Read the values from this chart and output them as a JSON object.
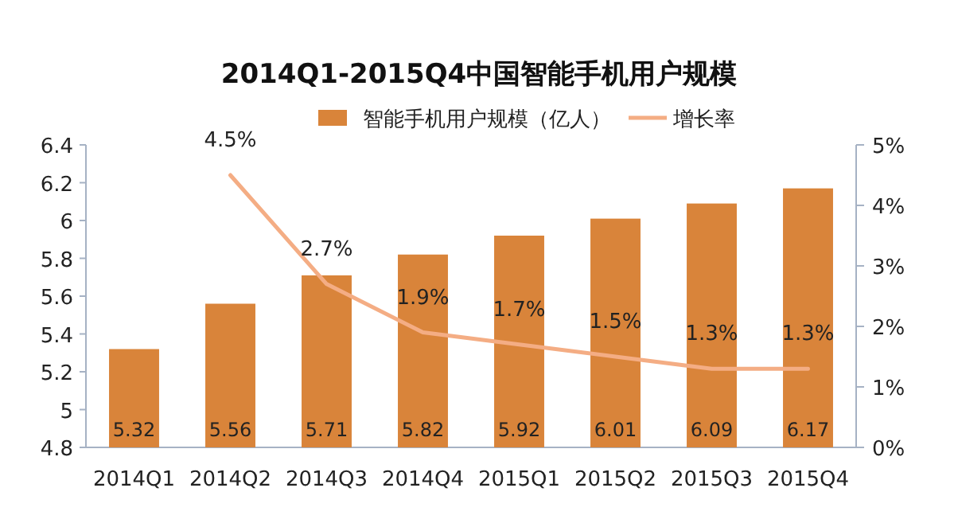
{
  "chart_data": {
    "type": "bar",
    "title": "2014Q1-2015Q4中国智能手机用户规模",
    "categories": [
      "2014Q1",
      "2014Q2",
      "2014Q3",
      "2014Q4",
      "2015Q1",
      "2015Q2",
      "2015Q3",
      "2015Q4"
    ],
    "series": [
      {
        "name": "智能手机用户规模（亿人）",
        "color": "#d9843a",
        "values": [
          5.32,
          5.56,
          5.71,
          5.82,
          5.92,
          6.01,
          6.09,
          6.17
        ],
        "value_labels": [
          "5.32",
          "5.56",
          "5.71",
          "5.82",
          "5.92",
          "6.01",
          "6.09",
          "6.17"
        ]
      },
      {
        "name": "增长率",
        "type": "line",
        "axis": "y2",
        "color": "#f4ad84",
        "values": [
          null,
          4.5,
          2.7,
          1.9,
          1.7,
          1.5,
          1.3,
          1.3
        ],
        "value_labels": [
          null,
          "4.5%",
          "2.7%",
          "1.9%",
          "1.7%",
          "1.5%",
          "1.3%",
          "1.3%"
        ]
      }
    ],
    "ylim": [
      4.8,
      6.4
    ],
    "yticks": [
      4.8,
      5,
      5.2,
      5.4,
      5.6,
      5.8,
      6,
      6.2,
      6.4
    ],
    "y2lim": [
      0,
      5
    ],
    "y2ticks": [
      {
        "value": 0,
        "label": "0%"
      },
      {
        "value": 1,
        "label": "1%"
      },
      {
        "value": 2,
        "label": "2%"
      },
      {
        "value": 3,
        "label": "3%"
      },
      {
        "value": 4,
        "label": "4%"
      },
      {
        "value": 5,
        "label": "5%"
      }
    ],
    "legend": "top"
  }
}
